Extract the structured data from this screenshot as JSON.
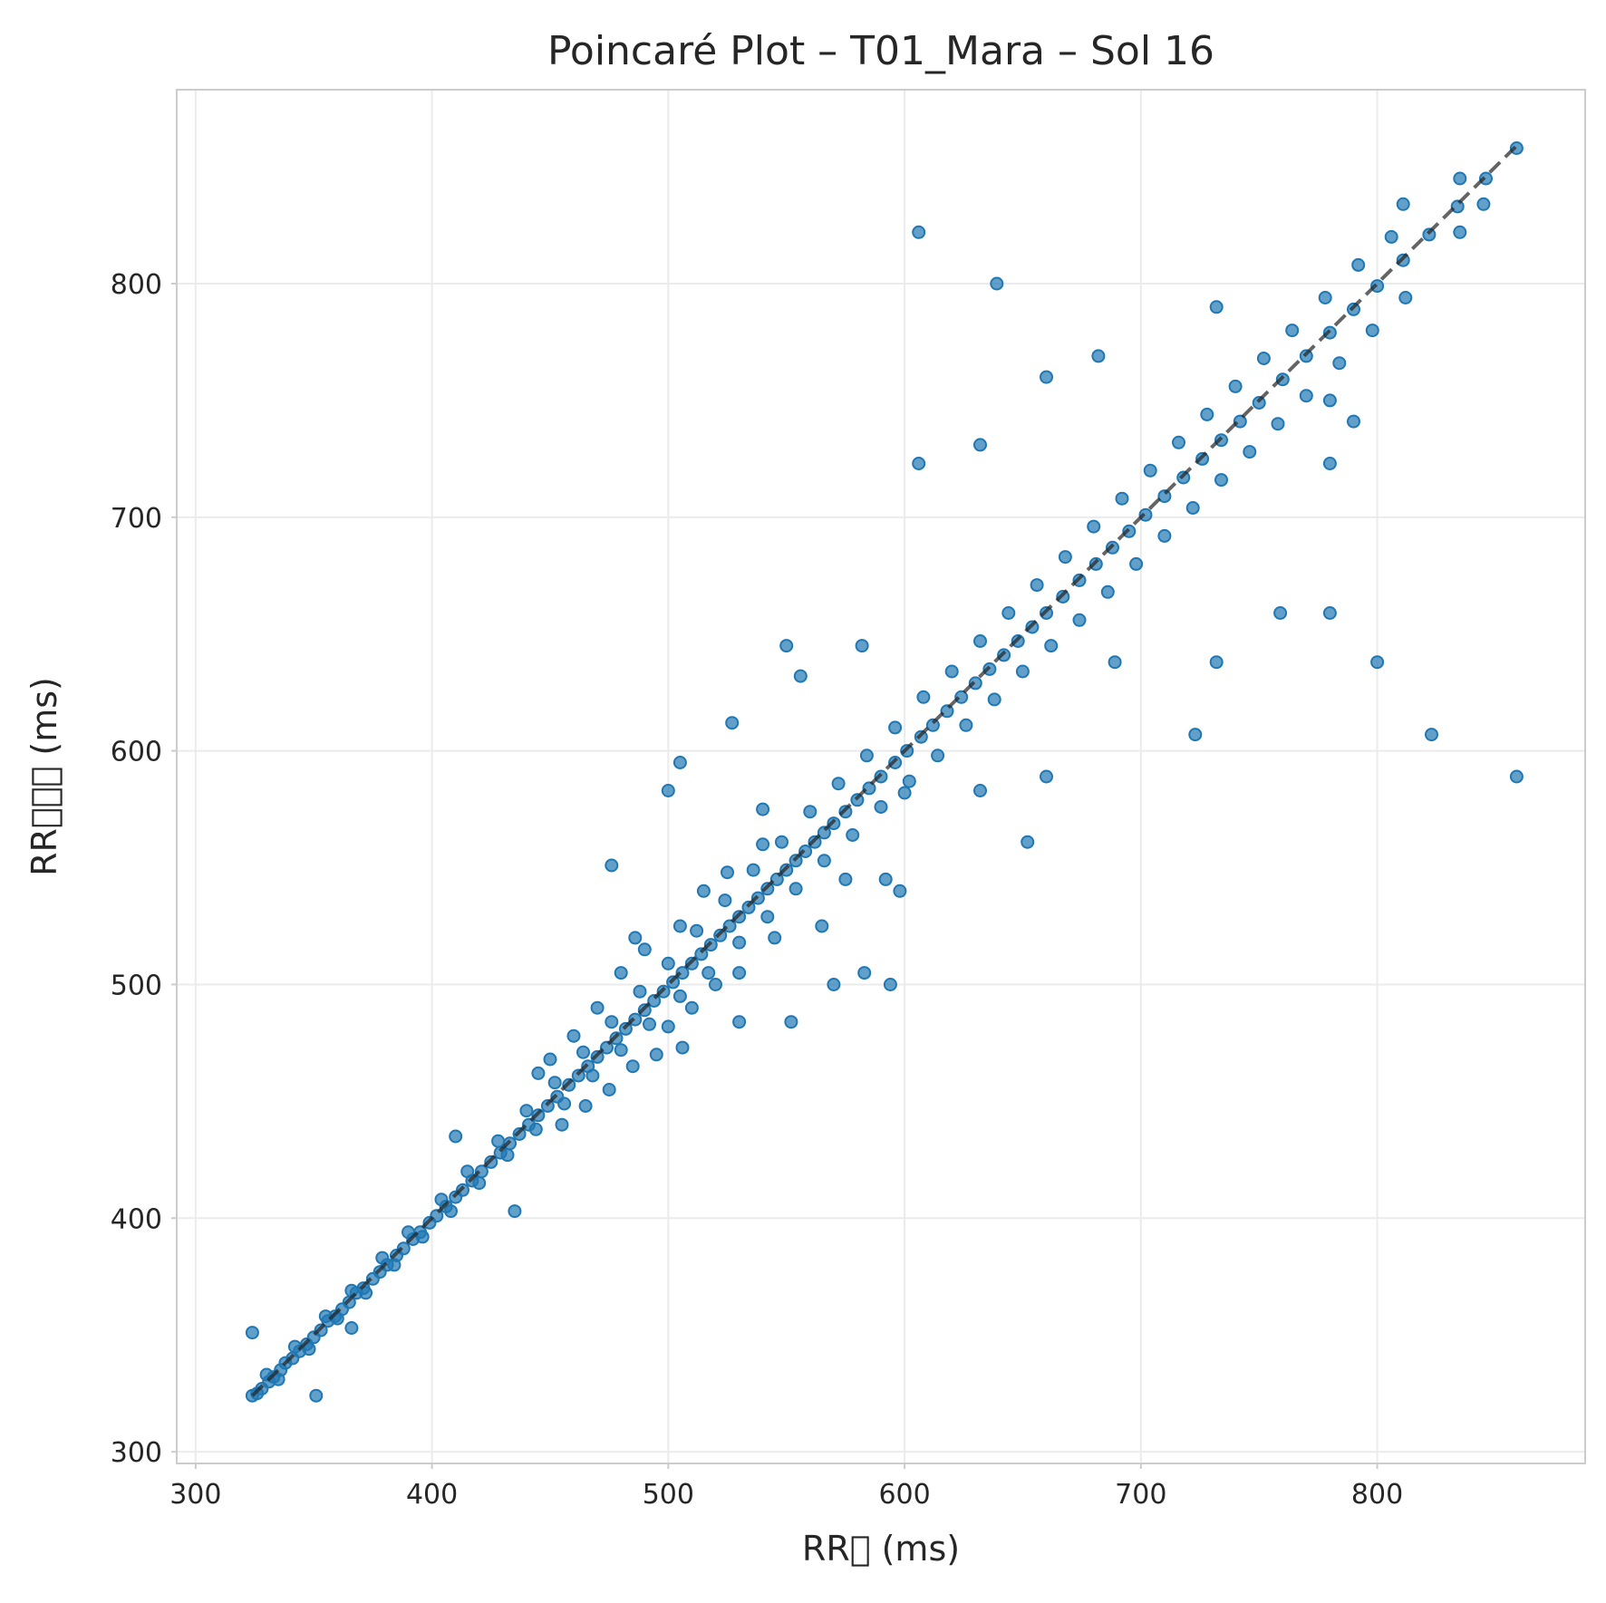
{
  "chart_data": {
    "type": "scatter",
    "title": "Poincaré Plot – T01_Mara – Sol 16",
    "xlabel": "RR\u0000 (ms)",
    "ylabel": "RR\u0000\u0000\u0000 (ms)",
    "xlim": [
      292,
      888
    ],
    "ylim": [
      295,
      883
    ],
    "xticks": [
      300,
      400,
      500,
      600,
      700,
      800
    ],
    "yticks": [
      300,
      400,
      500,
      600,
      700,
      800
    ],
    "grid": true,
    "colors": {
      "points": "#1f77b4",
      "identity_line": "#222222",
      "grid": "#ebebeb"
    },
    "identity_line": {
      "from": 324,
      "to": 859,
      "style": "dashed"
    },
    "series": [
      {
        "values": [
          [
            324,
            324
          ],
          [
            326,
            325
          ],
          [
            328,
            327
          ],
          [
            331,
            330
          ],
          [
            333,
            332
          ],
          [
            336,
            335
          ],
          [
            338,
            338
          ],
          [
            341,
            340
          ],
          [
            344,
            343
          ],
          [
            347,
            346
          ],
          [
            350,
            349
          ],
          [
            353,
            352
          ],
          [
            356,
            356
          ],
          [
            359,
            358
          ],
          [
            362,
            361
          ],
          [
            365,
            364
          ],
          [
            368,
            368
          ],
          [
            371,
            370
          ],
          [
            375,
            374
          ],
          [
            378,
            377
          ],
          [
            381,
            380
          ],
          [
            385,
            384
          ],
          [
            388,
            387
          ],
          [
            392,
            391
          ],
          [
            395,
            394
          ],
          [
            399,
            398
          ],
          [
            402,
            401
          ],
          [
            406,
            405
          ],
          [
            410,
            409
          ],
          [
            413,
            412
          ],
          [
            417,
            416
          ],
          [
            421,
            420
          ],
          [
            425,
            424
          ],
          [
            429,
            428
          ],
          [
            433,
            432
          ],
          [
            437,
            436
          ],
          [
            441,
            440
          ],
          [
            445,
            444
          ],
          [
            449,
            448
          ],
          [
            453,
            452
          ],
          [
            458,
            457
          ],
          [
            462,
            461
          ],
          [
            466,
            465
          ],
          [
            470,
            469
          ],
          [
            474,
            473
          ],
          [
            478,
            477
          ],
          [
            482,
            481
          ],
          [
            486,
            485
          ],
          [
            490,
            489
          ],
          [
            494,
            493
          ],
          [
            498,
            497
          ],
          [
            502,
            501
          ],
          [
            506,
            505
          ],
          [
            510,
            509
          ],
          [
            514,
            513
          ],
          [
            518,
            517
          ],
          [
            522,
            521
          ],
          [
            526,
            525
          ],
          [
            530,
            529
          ],
          [
            534,
            533
          ],
          [
            538,
            537
          ],
          [
            542,
            541
          ],
          [
            546,
            545
          ],
          [
            550,
            549
          ],
          [
            554,
            553
          ],
          [
            558,
            557
          ],
          [
            562,
            561
          ],
          [
            566,
            565
          ],
          [
            570,
            569
          ],
          [
            575,
            574
          ],
          [
            580,
            579
          ],
          [
            585,
            584
          ],
          [
            590,
            589
          ],
          [
            596,
            595
          ],
          [
            601,
            600
          ],
          [
            607,
            606
          ],
          [
            612,
            611
          ],
          [
            618,
            617
          ],
          [
            624,
            623
          ],
          [
            630,
            629
          ],
          [
            636,
            635
          ],
          [
            642,
            641
          ],
          [
            648,
            647
          ],
          [
            654,
            653
          ],
          [
            660,
            659
          ],
          [
            667,
            666
          ],
          [
            674,
            673
          ],
          [
            681,
            680
          ],
          [
            688,
            687
          ],
          [
            695,
            694
          ],
          [
            702,
            701
          ],
          [
            710,
            709
          ],
          [
            718,
            717
          ],
          [
            726,
            725
          ],
          [
            734,
            733
          ],
          [
            742,
            741
          ],
          [
            750,
            749
          ],
          [
            760,
            759
          ],
          [
            770,
            769
          ],
          [
            780,
            779
          ],
          [
            790,
            789
          ],
          [
            800,
            799
          ],
          [
            811,
            810
          ],
          [
            822,
            821
          ],
          [
            834,
            833
          ],
          [
            846,
            845
          ],
          [
            859,
            858
          ],
          [
            330,
            333
          ],
          [
            335,
            331
          ],
          [
            342,
            345
          ],
          [
            348,
            344
          ],
          [
            355,
            358
          ],
          [
            360,
            357
          ],
          [
            366,
            369
          ],
          [
            372,
            368
          ],
          [
            379,
            383
          ],
          [
            384,
            380
          ],
          [
            390,
            394
          ],
          [
            396,
            392
          ],
          [
            404,
            408
          ],
          [
            408,
            403
          ],
          [
            415,
            420
          ],
          [
            420,
            415
          ],
          [
            428,
            433
          ],
          [
            432,
            427
          ],
          [
            440,
            446
          ],
          [
            444,
            438
          ],
          [
            452,
            458
          ],
          [
            456,
            449
          ],
          [
            464,
            471
          ],
          [
            468,
            461
          ],
          [
            476,
            484
          ],
          [
            480,
            472
          ],
          [
            488,
            497
          ],
          [
            492,
            483
          ],
          [
            500,
            509
          ],
          [
            505,
            495
          ],
          [
            512,
            523
          ],
          [
            517,
            505
          ],
          [
            524,
            536
          ],
          [
            530,
            518
          ],
          [
            536,
            549
          ],
          [
            542,
            529
          ],
          [
            548,
            561
          ],
          [
            554,
            541
          ],
          [
            560,
            574
          ],
          [
            566,
            553
          ],
          [
            572,
            586
          ],
          [
            578,
            564
          ],
          [
            584,
            598
          ],
          [
            590,
            576
          ],
          [
            596,
            610
          ],
          [
            602,
            587
          ],
          [
            608,
            623
          ],
          [
            614,
            598
          ],
          [
            620,
            634
          ],
          [
            626,
            611
          ],
          [
            632,
            647
          ],
          [
            638,
            622
          ],
          [
            644,
            659
          ],
          [
            650,
            634
          ],
          [
            656,
            671
          ],
          [
            662,
            645
          ],
          [
            668,
            683
          ],
          [
            674,
            656
          ],
          [
            680,
            696
          ],
          [
            686,
            668
          ],
          [
            692,
            708
          ],
          [
            698,
            680
          ],
          [
            704,
            720
          ],
          [
            710,
            692
          ],
          [
            716,
            732
          ],
          [
            722,
            704
          ],
          [
            728,
            744
          ],
          [
            734,
            716
          ],
          [
            740,
            756
          ],
          [
            746,
            728
          ],
          [
            752,
            768
          ],
          [
            758,
            740
          ],
          [
            764,
            780
          ],
          [
            770,
            752
          ],
          [
            778,
            794
          ],
          [
            784,
            766
          ],
          [
            792,
            808
          ],
          [
            798,
            780
          ],
          [
            806,
            820
          ],
          [
            812,
            794
          ],
          [
            500,
            482
          ],
          [
            505,
            525
          ],
          [
            510,
            490
          ],
          [
            515,
            540
          ],
          [
            520,
            500
          ],
          [
            525,
            548
          ],
          [
            530,
            505
          ],
          [
            540,
            560
          ],
          [
            545,
            520
          ],
          [
            480,
            505
          ],
          [
            485,
            465
          ],
          [
            490,
            515
          ],
          [
            495,
            470
          ],
          [
            470,
            490
          ],
          [
            475,
            455
          ],
          [
            460,
            478
          ],
          [
            465,
            448
          ],
          [
            450,
            468
          ],
          [
            455,
            440
          ],
          [
            445,
            462
          ],
          [
            324,
            351
          ],
          [
            351,
            324
          ],
          [
            435,
            403
          ],
          [
            410,
            435
          ],
          [
            366,
            353
          ],
          [
            476,
            551
          ],
          [
            527,
            612
          ],
          [
            550,
            645
          ],
          [
            556,
            632
          ],
          [
            505,
            595
          ],
          [
            582,
            645
          ],
          [
            606,
            822
          ],
          [
            639,
            800
          ],
          [
            632,
            731
          ],
          [
            606,
            723
          ],
          [
            660,
            760
          ],
          [
            682,
            769
          ],
          [
            732,
            790
          ],
          [
            552,
            484
          ],
          [
            530,
            484
          ],
          [
            594,
            500
          ],
          [
            583,
            505
          ],
          [
            652,
            561
          ],
          [
            632,
            583
          ],
          [
            660,
            589
          ],
          [
            723,
            607
          ],
          [
            823,
            607
          ],
          [
            859,
            589
          ],
          [
            800,
            638
          ],
          [
            780,
            659
          ],
          [
            759,
            659
          ],
          [
            732,
            638
          ],
          [
            689,
            638
          ],
          [
            845,
            834
          ],
          [
            835,
            822
          ],
          [
            835,
            845
          ],
          [
            811,
            834
          ],
          [
            780,
            723
          ],
          [
            780,
            750
          ],
          [
            790,
            741
          ],
          [
            506,
            473
          ],
          [
            500,
            583
          ],
          [
            598,
            540
          ],
          [
            570,
            500
          ],
          [
            592,
            545
          ],
          [
            565,
            525
          ],
          [
            486,
            520
          ],
          [
            540,
            575
          ],
          [
            575,
            545
          ],
          [
            600,
            582
          ]
        ]
      }
    ]
  }
}
